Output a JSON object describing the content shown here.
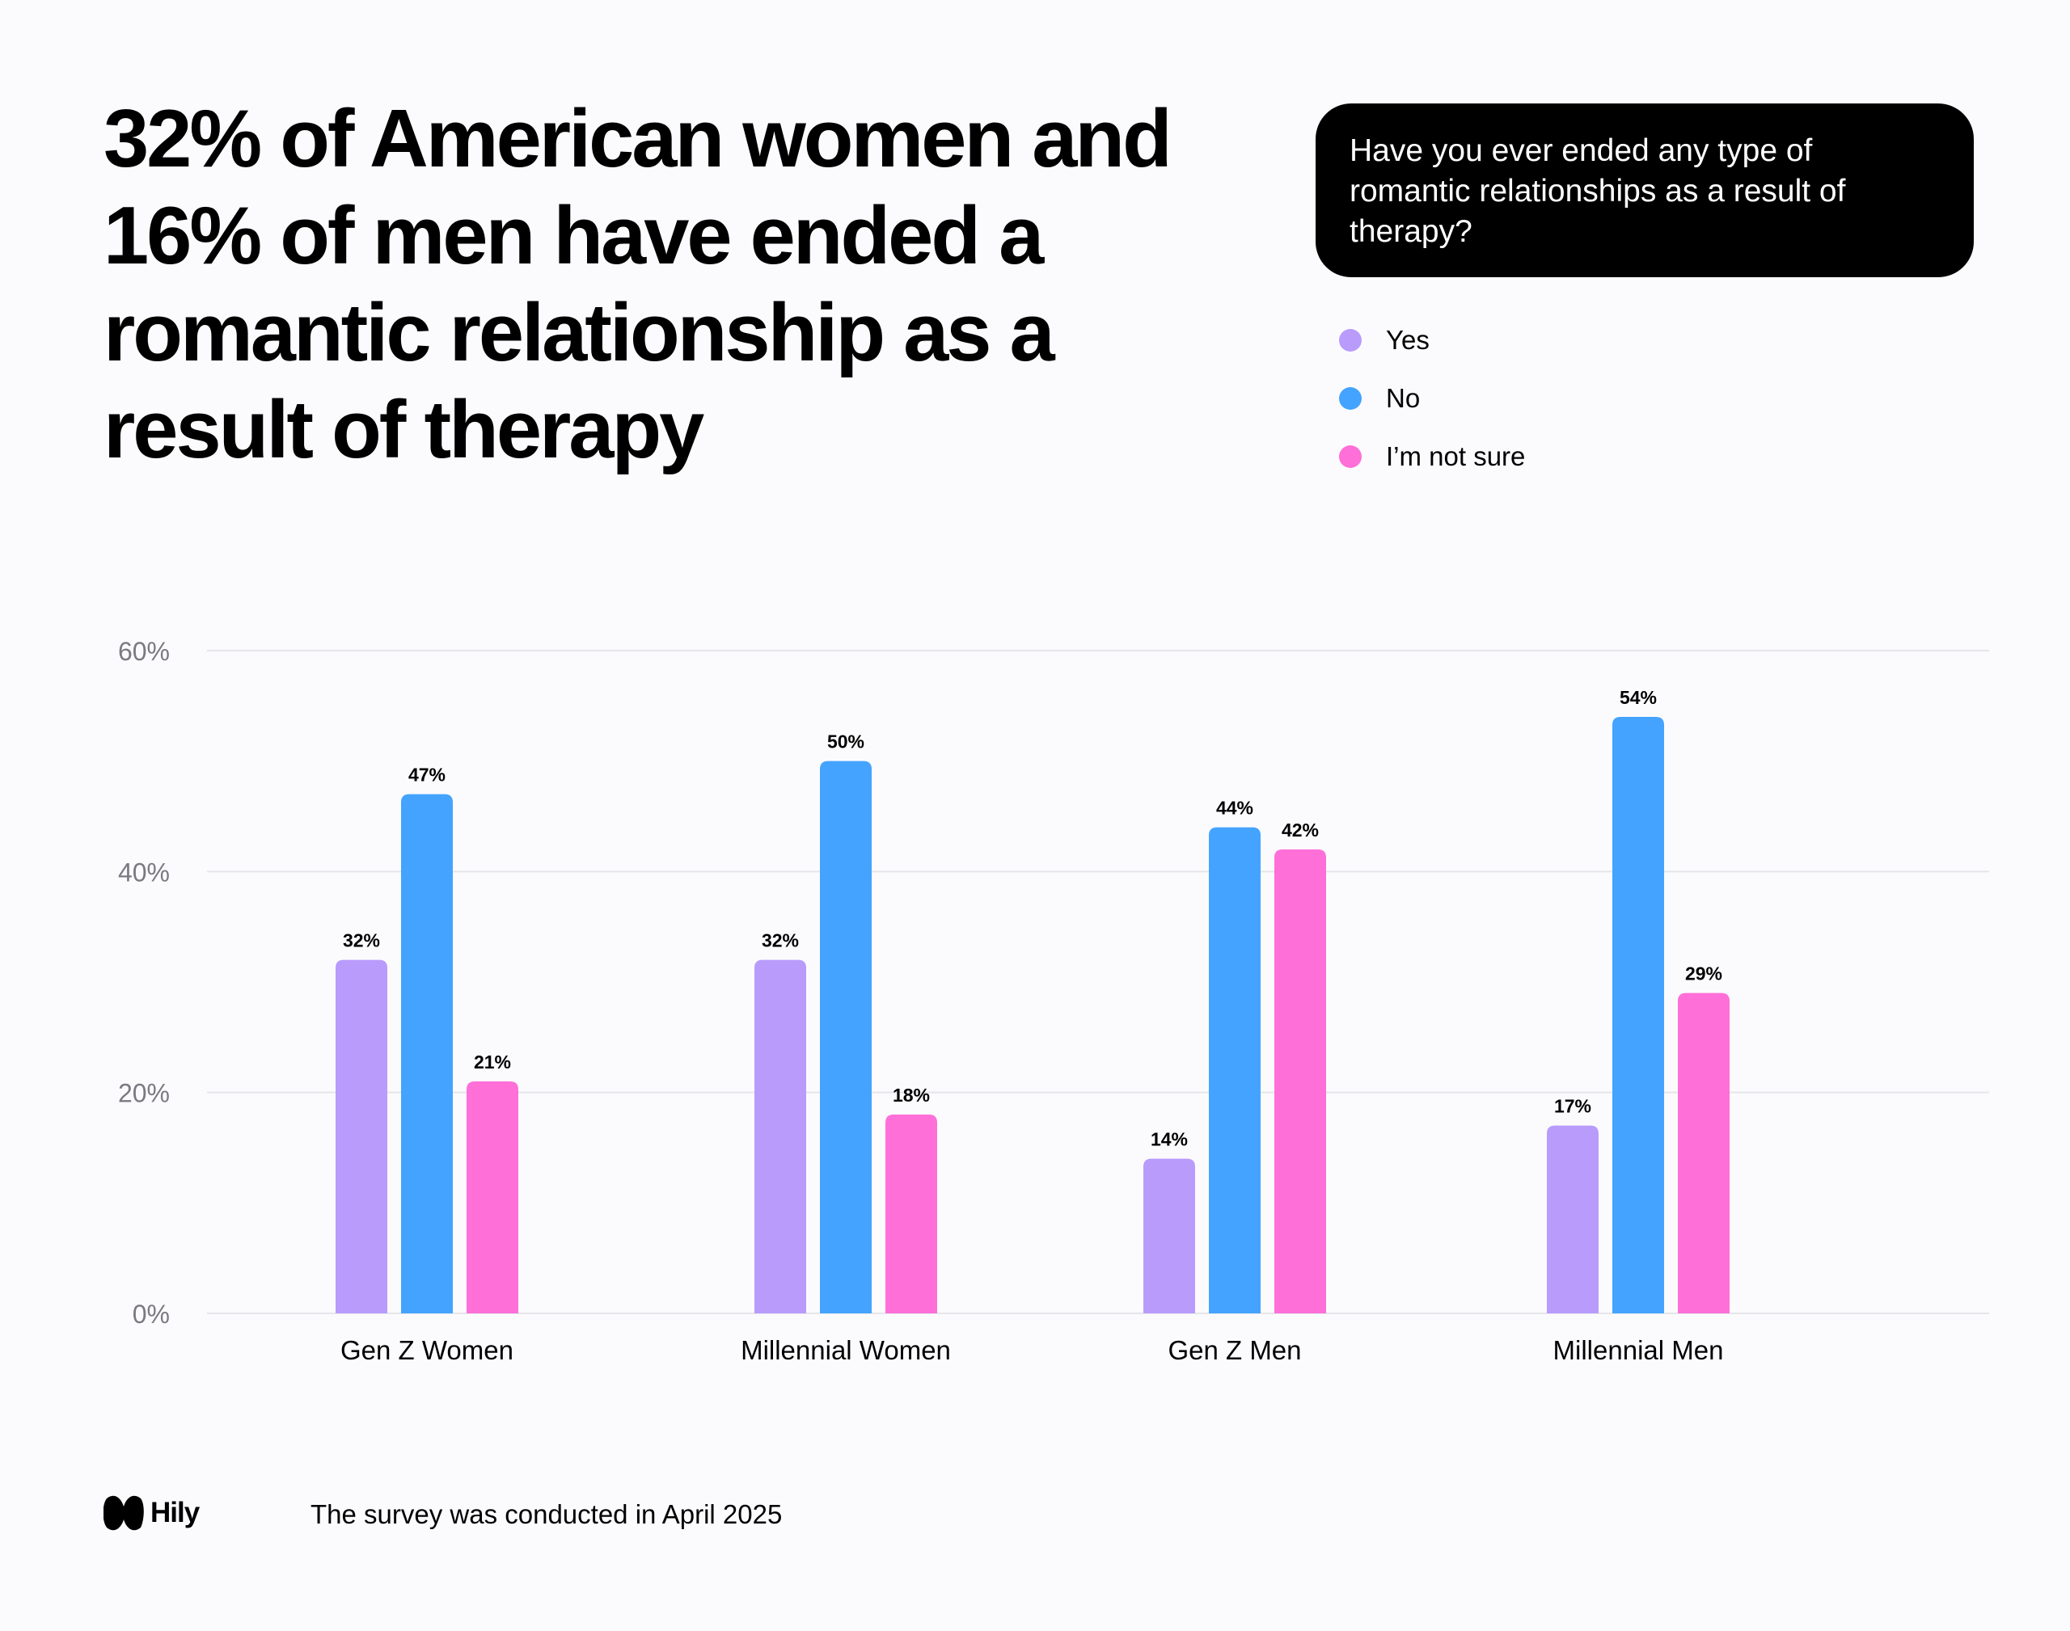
{
  "headline": "32% of American women and 16% of men have ended a romantic relationship as a result of therapy",
  "question": "Have you ever ended any type of romantic relationships as a result of therapy?",
  "legend": [
    {
      "label": "Yes",
      "color": "#b99bfc"
    },
    {
      "label": "No",
      "color": "#44a3fe"
    },
    {
      "label": "I’m not sure",
      "color": "#ff6fd8"
    }
  ],
  "footer": {
    "brand": "Hily",
    "note": "The survey was conducted in April 2025"
  },
  "chart_data": {
    "type": "bar",
    "title": "",
    "xlabel": "",
    "ylabel": "",
    "ylim": [
      0,
      60
    ],
    "yticks": [
      0,
      20,
      40,
      60
    ],
    "ytick_labels": [
      "0%",
      "20%",
      "40%",
      "60%"
    ],
    "grid": true,
    "categories": [
      "Gen Z Women",
      "Millennial Women",
      "Gen Z Men",
      "Millennial Men"
    ],
    "series": [
      {
        "name": "Yes",
        "color": "#b99bfc",
        "values": [
          32,
          32,
          14,
          17
        ]
      },
      {
        "name": "No",
        "color": "#44a3fe",
        "values": [
          47,
          50,
          44,
          54
        ]
      },
      {
        "name": "I’m not sure",
        "color": "#ff6fd8",
        "values": [
          21,
          18,
          42,
          29
        ]
      }
    ],
    "value_suffix": "%"
  }
}
